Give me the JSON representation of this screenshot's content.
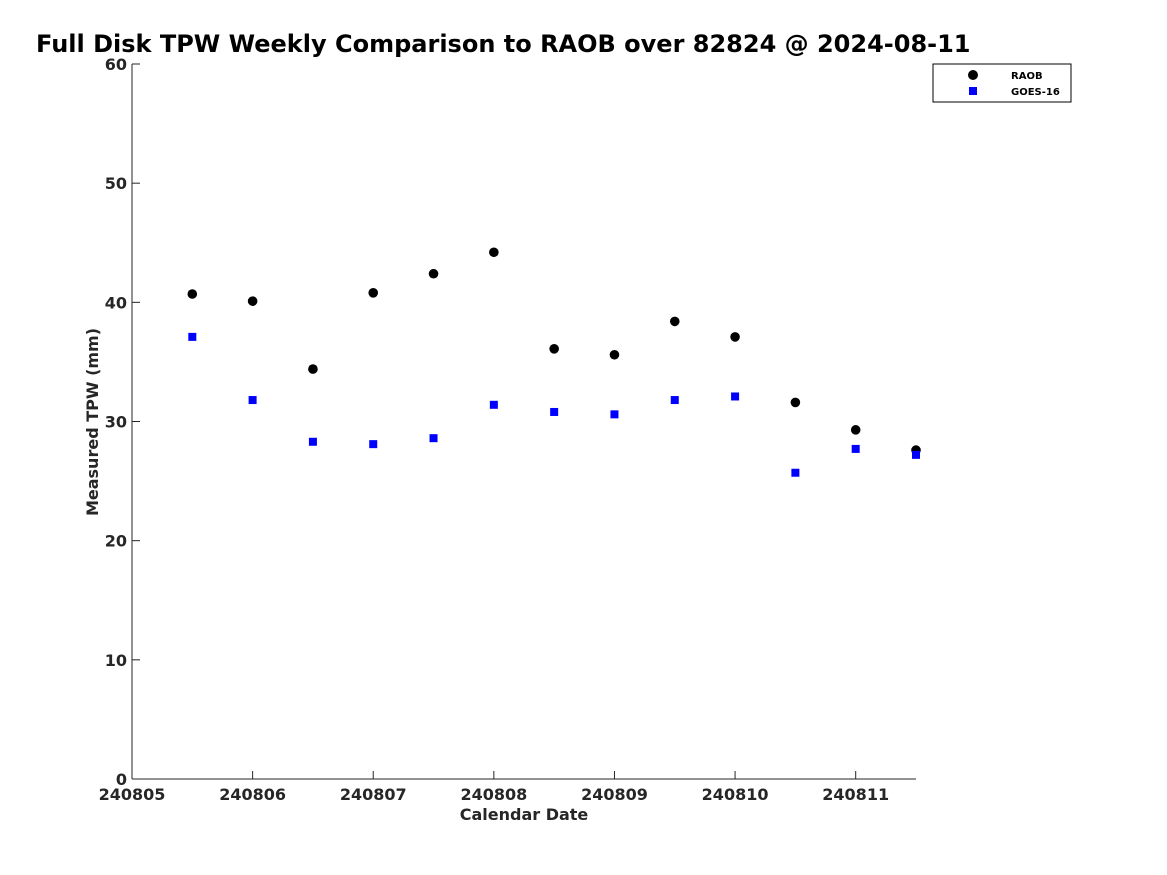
{
  "chart_data": {
    "type": "scatter",
    "title": "Full Disk TPW Weekly Comparison to RAOB over 82824 @ 2024-08-11",
    "xlabel": "Calendar Date",
    "ylabel": "Measured TPW (mm)",
    "xlim": [
      240805,
      240811.5
    ],
    "ylim": [
      0,
      60
    ],
    "x_ticks": [
      240805,
      240806,
      240807,
      240808,
      240809,
      240810,
      240811
    ],
    "x_tick_labels": [
      "240805",
      "240806",
      "240807",
      "240808",
      "240809",
      "240810",
      "240811"
    ],
    "y_ticks": [
      0,
      10,
      20,
      30,
      40,
      50,
      60
    ],
    "y_tick_labels": [
      "0",
      "10",
      "20",
      "30",
      "40",
      "50",
      "60"
    ],
    "grid": false,
    "legend_position": "top-right",
    "x": [
      240805.5,
      240806,
      240806.5,
      240807,
      240807.5,
      240808,
      240808.5,
      240809,
      240809.5,
      240810,
      240810.5,
      240811,
      240811.5
    ],
    "series": [
      {
        "name": "RAOB",
        "marker": "circle",
        "color": "#000000",
        "values": [
          40.7,
          40.1,
          34.4,
          40.8,
          42.4,
          44.2,
          36.1,
          35.6,
          38.4,
          37.1,
          31.6,
          29.3,
          27.6
        ]
      },
      {
        "name": "GOES-16",
        "marker": "square",
        "color": "#0000ff",
        "values": [
          37.1,
          31.8,
          28.3,
          28.1,
          28.6,
          31.4,
          30.8,
          30.6,
          31.8,
          32.1,
          25.7,
          27.7,
          27.2
        ]
      }
    ]
  }
}
